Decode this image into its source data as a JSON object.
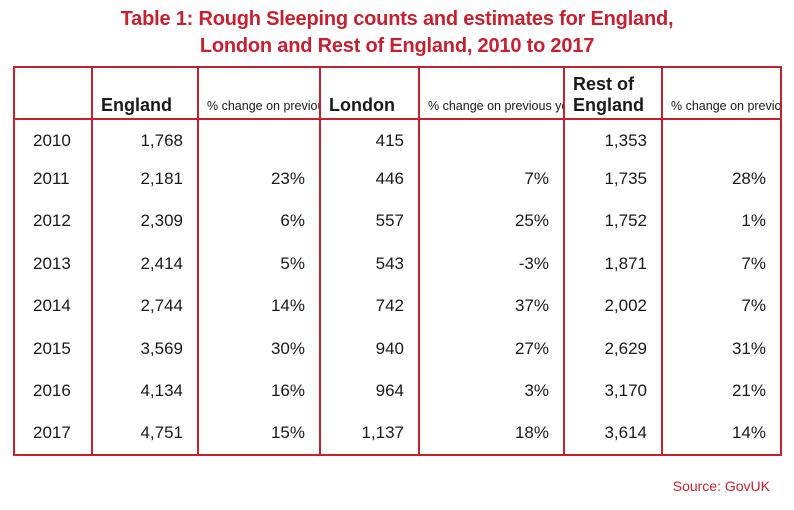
{
  "title": {
    "line1": "Table 1: Rough Sleeping counts and estimates for England,",
    "line2": "London and Rest of England, 2010 to 2017"
  },
  "headers": {
    "year": "",
    "england": "England",
    "england_pct": "% change on previous year",
    "london": "London",
    "london_pct": "% change on previous year",
    "rest": "Rest of England",
    "rest_line1": "Rest of",
    "rest_line2": "England",
    "rest_pct": "% change on previous year"
  },
  "chart_data": {
    "type": "table",
    "columns": [
      "",
      "England",
      "% change on previous year",
      "London",
      "% change on previous year",
      "Rest of England",
      "% change on previous year"
    ],
    "rows": [
      [
        "2010",
        "1,768",
        "",
        "415",
        "",
        "1,353",
        ""
      ],
      [
        "2011",
        "2,181",
        "23%",
        "446",
        "7%",
        "1,735",
        "28%"
      ],
      [
        "2012",
        "2,309",
        "6%",
        "557",
        "25%",
        "1,752",
        "1%"
      ],
      [
        "2013",
        "2,414",
        "5%",
        "543",
        "-3%",
        "1,871",
        "7%"
      ],
      [
        "2014",
        "2,744",
        "14%",
        "742",
        "37%",
        "2,002",
        "7%"
      ],
      [
        "2015",
        "3,569",
        "30%",
        "940",
        "27%",
        "2,629",
        "31%"
      ],
      [
        "2016",
        "4,134",
        "16%",
        "964",
        "3%",
        "3,170",
        "21%"
      ],
      [
        "2017",
        "4,751",
        "15%",
        "1,137",
        "18%",
        "3,614",
        "14%"
      ]
    ]
  },
  "source": "Source: GovUK",
  "colors": {
    "accent": "#c8202e",
    "text": "#1a1a1a"
  }
}
